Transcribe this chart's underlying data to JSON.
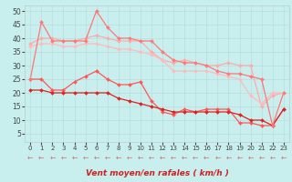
{
  "xlabel": "Vent moyen/en rafales ( km/h )",
  "background_color": "#c8eeee",
  "grid_color": "#b8dddd",
  "xlim": [
    -0.5,
    23.5
  ],
  "ylim": [
    2,
    52
  ],
  "yticks": [
    5,
    10,
    15,
    20,
    25,
    30,
    35,
    40,
    45,
    50
  ],
  "xticks": [
    0,
    1,
    2,
    3,
    4,
    5,
    6,
    7,
    8,
    9,
    10,
    11,
    12,
    13,
    14,
    15,
    16,
    17,
    18,
    19,
    20,
    21,
    22,
    23
  ],
  "lines": [
    {
      "color": "#ffaaaa",
      "marker": "D",
      "markersize": 2,
      "linewidth": 0.9,
      "y": [
        38,
        40,
        40,
        39,
        39,
        40,
        41,
        40,
        39,
        39,
        39,
        35,
        32,
        31,
        32,
        31,
        30,
        30,
        31,
        30,
        30,
        15,
        19,
        20
      ]
    },
    {
      "color": "#ffbbbb",
      "marker": "D",
      "markersize": 2,
      "linewidth": 0.9,
      "y": [
        37,
        38,
        38,
        37,
        37,
        38,
        38,
        37,
        36,
        36,
        35,
        34,
        32,
        28,
        28,
        28,
        28,
        27,
        26,
        25,
        19,
        16,
        20,
        20
      ]
    },
    {
      "color": "#ff5555",
      "marker": "D",
      "markersize": 2,
      "linewidth": 0.9,
      "y": [
        25,
        25,
        21,
        21,
        24,
        26,
        28,
        25,
        23,
        23,
        24,
        17,
        13,
        12,
        14,
        13,
        14,
        14,
        14,
        9,
        9,
        8,
        8,
        14
      ]
    },
    {
      "color": "#dd2222",
      "marker": "D",
      "markersize": 2,
      "linewidth": 0.9,
      "y": [
        21,
        21,
        20,
        20,
        20,
        20,
        20,
        20,
        18,
        17,
        16,
        15,
        14,
        13,
        13,
        13,
        13,
        13,
        13,
        12,
        10,
        10,
        8,
        14
      ]
    },
    {
      "color": "#ff7777",
      "marker": "D",
      "markersize": 2,
      "linewidth": 0.9,
      "y": [
        25,
        46,
        39,
        39,
        39,
        39,
        50,
        44,
        40,
        40,
        39,
        39,
        35,
        32,
        31,
        31,
        30,
        28,
        27,
        27,
        26,
        25,
        8,
        20
      ]
    }
  ],
  "arrow_char": "←",
  "arrow_color": "#cc7777",
  "xlabel_color": "#cc2222",
  "xlabel_fontsize": 6.5,
  "tick_fontsize_x": 5.0,
  "tick_fontsize_y": 5.5
}
